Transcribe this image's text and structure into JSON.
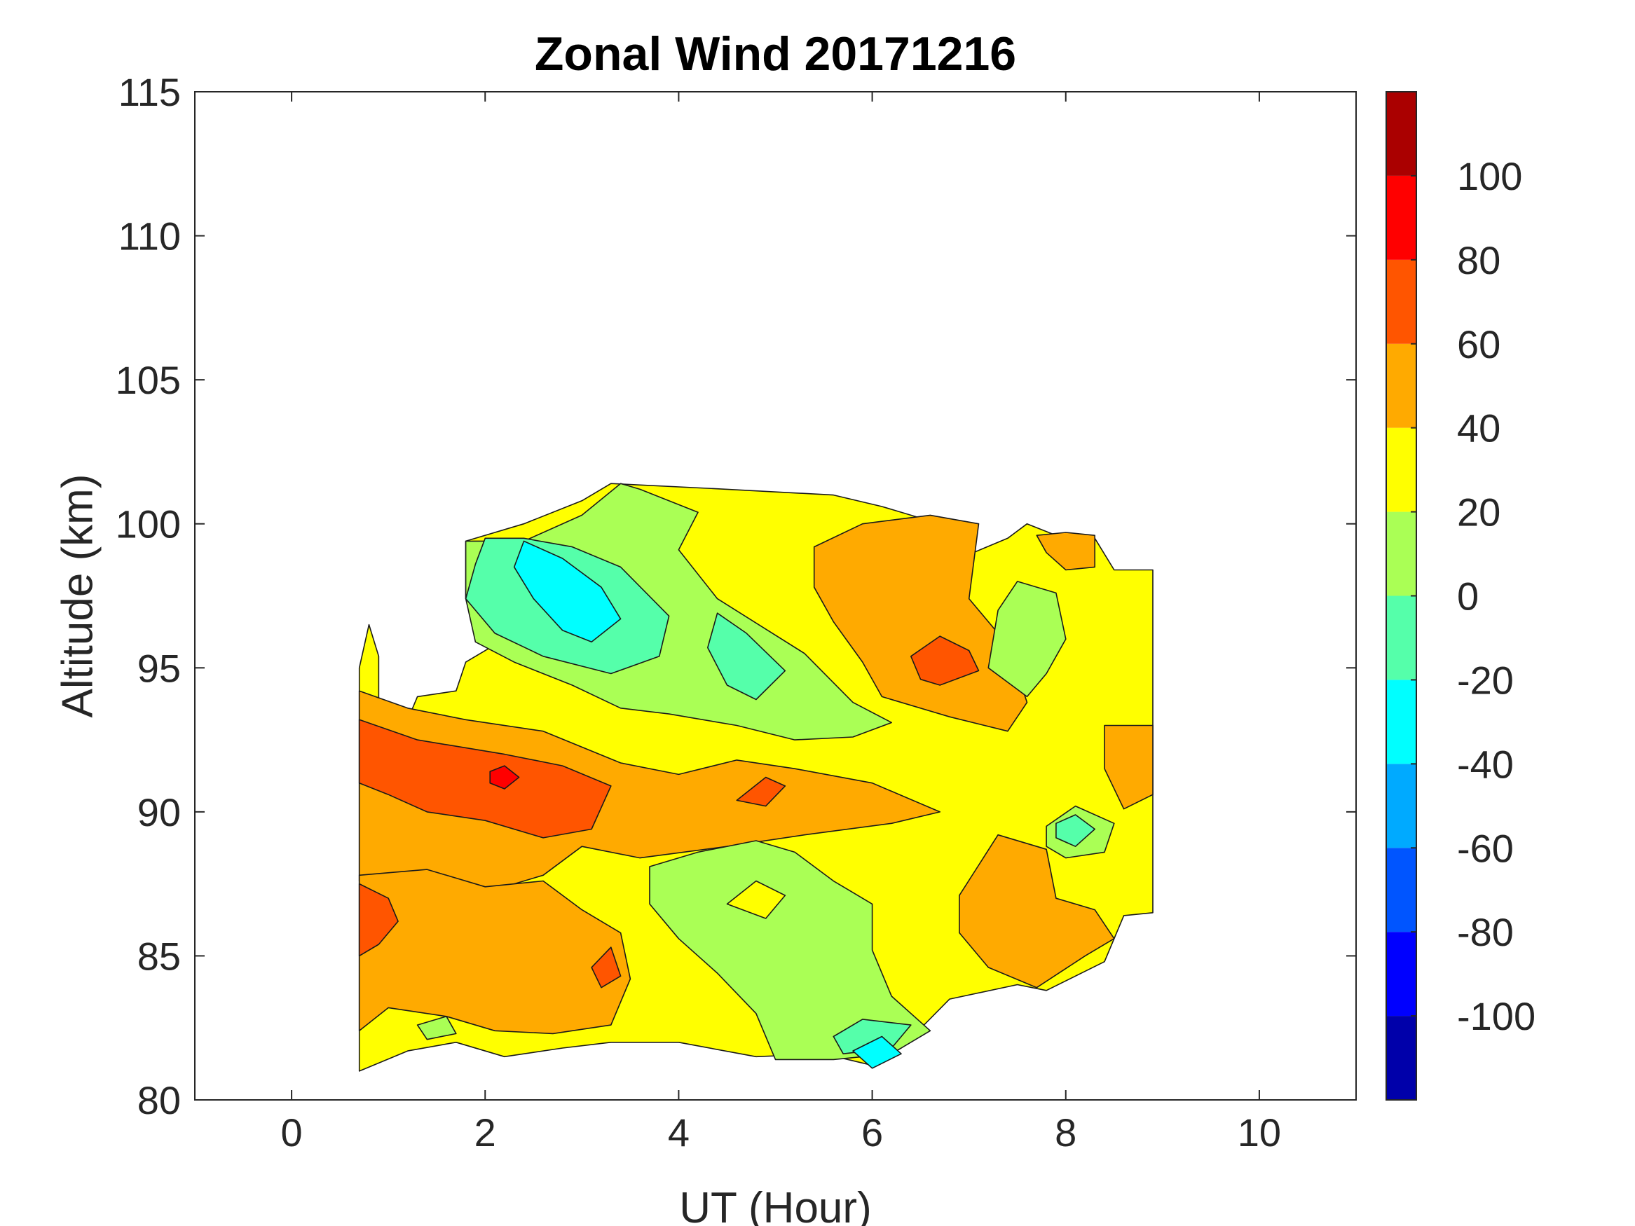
{
  "chart_data": {
    "type": "heatmap",
    "subtype": "filled-contour",
    "title": "Zonal Wind 20171216",
    "xlabel": "UT (Hour)",
    "ylabel": "Altitude (km)",
    "xlim": [
      -1,
      11
    ],
    "ylim": [
      80,
      115
    ],
    "x_ticks": [
      0,
      2,
      4,
      6,
      8,
      10
    ],
    "x_tick_labels": [
      "0",
      "2",
      "4",
      "6",
      "8",
      "10"
    ],
    "y_ticks": [
      80,
      85,
      90,
      95,
      100,
      105,
      110,
      115
    ],
    "y_tick_labels": [
      "80",
      "85",
      "90",
      "95",
      "100",
      "105",
      "110",
      "115"
    ],
    "grid": false,
    "colorbar": {
      "location": "right",
      "range": [
        -120,
        120
      ],
      "ticks": [
        -100,
        -80,
        -60,
        -40,
        -20,
        0,
        20,
        40,
        60,
        80,
        100
      ],
      "tick_labels": [
        "-100",
        "-80",
        "-60",
        "-40",
        "-20",
        "0",
        "20",
        "40",
        "60",
        "80",
        "100"
      ],
      "levels": [
        -120,
        -100,
        -80,
        -60,
        -40,
        -20,
        0,
        20,
        40,
        60,
        80,
        100,
        120
      ],
      "colors": [
        "#0000aa",
        "#0000ff",
        "#0055ff",
        "#00aaff",
        "#00ffff",
        "#55ffaa",
        "#aaff55",
        "#ffff00",
        "#ffaa00",
        "#ff5500",
        "#ff0000",
        "#aa0000"
      ]
    },
    "data_extent": {
      "x": [
        0.7,
        8.9
      ],
      "y": [
        81,
        101.5
      ]
    },
    "regions": [
      {
        "label": "coverage",
        "value": 30,
        "points": [
          [
            0.7,
            81
          ],
          [
            1.2,
            81.7
          ],
          [
            1.7,
            82
          ],
          [
            2.2,
            81.5
          ],
          [
            2.8,
            81.8
          ],
          [
            3.3,
            82
          ],
          [
            4.0,
            82
          ],
          [
            4.8,
            81.5
          ],
          [
            5.5,
            81.6
          ],
          [
            6.0,
            81.2
          ],
          [
            6.3,
            81.8
          ],
          [
            6.8,
            83.5
          ],
          [
            7.5,
            84
          ],
          [
            7.8,
            83.8
          ],
          [
            8.4,
            84.8
          ],
          [
            8.6,
            86.4
          ],
          [
            8.9,
            86.5
          ],
          [
            8.9,
            98.4
          ],
          [
            8.5,
            98.4
          ],
          [
            8.3,
            99.5
          ],
          [
            7.9,
            99.6
          ],
          [
            7.6,
            100
          ],
          [
            7.4,
            99.5
          ],
          [
            6.9,
            98.8
          ],
          [
            6.7,
            99.8
          ],
          [
            6.5,
            100.2
          ],
          [
            6.1,
            100.6
          ],
          [
            5.6,
            101
          ],
          [
            4.5,
            101.2
          ],
          [
            3.3,
            101.4
          ],
          [
            3.0,
            100.8
          ],
          [
            2.4,
            100
          ],
          [
            1.8,
            99.4
          ],
          [
            1.8,
            97.4
          ],
          [
            2.0,
            96.5
          ],
          [
            2.1,
            95.8
          ],
          [
            1.8,
            95.2
          ],
          [
            1.7,
            94.2
          ],
          [
            1.3,
            94
          ],
          [
            1.2,
            93.2
          ],
          [
            0.9,
            93.9
          ],
          [
            0.9,
            95.4
          ],
          [
            0.8,
            96.5
          ],
          [
            0.7,
            95
          ]
        ]
      },
      {
        "label": "band-orange-upper",
        "value": 50,
        "points": [
          [
            0.7,
            94.2
          ],
          [
            1.2,
            93.6
          ],
          [
            1.8,
            93.2
          ],
          [
            2.6,
            92.8
          ],
          [
            3.4,
            91.7
          ],
          [
            4.0,
            91.3
          ],
          [
            4.6,
            91.8
          ],
          [
            5.2,
            91.5
          ],
          [
            6.0,
            91.0
          ],
          [
            6.7,
            90.0
          ],
          [
            6.2,
            89.6
          ],
          [
            5.3,
            89.2
          ],
          [
            4.5,
            88.8
          ],
          [
            3.6,
            88.4
          ],
          [
            3.0,
            88.8
          ],
          [
            2.6,
            87.8
          ],
          [
            2.0,
            87.2
          ],
          [
            1.4,
            87.9
          ],
          [
            0.7,
            87.6
          ]
        ]
      },
      {
        "label": "band-orange-lower",
        "value": 50,
        "points": [
          [
            0.7,
            87.8
          ],
          [
            1.4,
            88.0
          ],
          [
            2.0,
            87.4
          ],
          [
            2.6,
            87.6
          ],
          [
            3.0,
            86.6
          ],
          [
            3.4,
            85.8
          ],
          [
            3.5,
            84.2
          ],
          [
            3.3,
            82.6
          ],
          [
            2.7,
            82.3
          ],
          [
            2.1,
            82.4
          ],
          [
            1.6,
            82.9
          ],
          [
            1.0,
            83.2
          ],
          [
            0.7,
            82.4
          ]
        ]
      },
      {
        "label": "orange-upper-right",
        "value": 50,
        "points": [
          [
            5.4,
            99.2
          ],
          [
            5.9,
            100.0
          ],
          [
            6.6,
            100.3
          ],
          [
            7.1,
            100.0
          ],
          [
            7.0,
            97.4
          ],
          [
            7.4,
            95.8
          ],
          [
            7.6,
            93.8
          ],
          [
            7.4,
            92.8
          ],
          [
            6.8,
            93.3
          ],
          [
            6.1,
            94.0
          ],
          [
            5.9,
            95.2
          ],
          [
            5.6,
            96.6
          ],
          [
            5.4,
            97.8
          ]
        ]
      },
      {
        "label": "orange-lower-right",
        "value": 50,
        "points": [
          [
            6.9,
            87.1
          ],
          [
            7.3,
            89.2
          ],
          [
            7.8,
            88.7
          ],
          [
            7.9,
            87.0
          ],
          [
            8.3,
            86.6
          ],
          [
            8.5,
            85.6
          ],
          [
            8.2,
            85.0
          ],
          [
            7.7,
            83.9
          ],
          [
            7.2,
            84.6
          ],
          [
            6.9,
            85.8
          ]
        ]
      },
      {
        "label": "orange-right-edge",
        "value": 50,
        "points": [
          [
            8.4,
            93.0
          ],
          [
            8.9,
            93.0
          ],
          [
            8.9,
            90.6
          ],
          [
            8.6,
            90.1
          ],
          [
            8.4,
            91.5
          ]
        ]
      },
      {
        "label": "orange-top-right",
        "value": 50,
        "points": [
          [
            7.7,
            99.6
          ],
          [
            8.0,
            99.7
          ],
          [
            8.3,
            99.6
          ],
          [
            8.3,
            98.5
          ],
          [
            8.0,
            98.4
          ],
          [
            7.8,
            99.0
          ]
        ]
      },
      {
        "label": "red-left",
        "value": 70,
        "points": [
          [
            0.7,
            93.2
          ],
          [
            1.3,
            92.5
          ],
          [
            2.2,
            92.0
          ],
          [
            2.8,
            91.6
          ],
          [
            3.3,
            90.9
          ],
          [
            3.1,
            89.4
          ],
          [
            2.6,
            89.1
          ],
          [
            2.0,
            89.7
          ],
          [
            1.4,
            90.0
          ],
          [
            1.0,
            90.6
          ],
          [
            0.7,
            91.0
          ]
        ]
      },
      {
        "label": "red-mid",
        "value": 70,
        "points": [
          [
            4.6,
            90.4
          ],
          [
            4.9,
            91.2
          ],
          [
            5.1,
            90.9
          ],
          [
            4.9,
            90.2
          ]
        ]
      },
      {
        "label": "red-upper-right",
        "value": 70,
        "points": [
          [
            6.4,
            95.4
          ],
          [
            6.7,
            96.1
          ],
          [
            7.0,
            95.6
          ],
          [
            7.1,
            94.9
          ],
          [
            6.7,
            94.4
          ],
          [
            6.5,
            94.6
          ]
        ]
      },
      {
        "label": "red-lower-left",
        "value": 70,
        "points": [
          [
            0.7,
            87.5
          ],
          [
            1.0,
            87.0
          ],
          [
            1.1,
            86.2
          ],
          [
            0.9,
            85.4
          ],
          [
            0.7,
            85.0
          ]
        ]
      },
      {
        "label": "red-lower-mid",
        "value": 70,
        "points": [
          [
            3.1,
            84.6
          ],
          [
            3.3,
            85.3
          ],
          [
            3.4,
            84.3
          ],
          [
            3.2,
            83.9
          ]
        ]
      },
      {
        "label": "darkred-core",
        "value": 90,
        "points": [
          [
            2.05,
            91.4
          ],
          [
            2.2,
            91.6
          ],
          [
            2.35,
            91.2
          ],
          [
            2.2,
            90.8
          ],
          [
            2.05,
            91.0
          ]
        ]
      },
      {
        "label": "green-top",
        "value": 10,
        "points": [
          [
            1.8,
            99.4
          ],
          [
            2.4,
            99.4
          ],
          [
            3.0,
            100.3
          ],
          [
            3.4,
            101.4
          ],
          [
            3.6,
            101.2
          ],
          [
            4.2,
            100.4
          ],
          [
            4.0,
            99.1
          ],
          [
            4.4,
            97.4
          ],
          [
            5.3,
            95.5
          ],
          [
            5.8,
            93.8
          ],
          [
            6.2,
            93.1
          ],
          [
            5.8,
            92.6
          ],
          [
            5.2,
            92.5
          ],
          [
            4.6,
            93.0
          ],
          [
            3.9,
            93.4
          ],
          [
            3.4,
            93.6
          ],
          [
            2.9,
            94.4
          ],
          [
            2.3,
            95.2
          ],
          [
            1.9,
            95.9
          ],
          [
            1.8,
            97.4
          ]
        ]
      },
      {
        "label": "green-bottom",
        "value": 10,
        "points": [
          [
            3.7,
            88.1
          ],
          [
            4.2,
            88.6
          ],
          [
            4.8,
            89.0
          ],
          [
            5.2,
            88.6
          ],
          [
            5.6,
            87.6
          ],
          [
            6.0,
            86.8
          ],
          [
            6.0,
            85.2
          ],
          [
            6.2,
            83.6
          ],
          [
            6.6,
            82.4
          ],
          [
            6.2,
            81.6
          ],
          [
            5.6,
            81.4
          ],
          [
            5.0,
            81.4
          ],
          [
            4.8,
            83.0
          ],
          [
            4.4,
            84.4
          ],
          [
            4.0,
            85.6
          ],
          [
            3.7,
            86.8
          ]
        ]
      },
      {
        "label": "green-right",
        "value": 10,
        "points": [
          [
            7.3,
            97.0
          ],
          [
            7.5,
            98.0
          ],
          [
            7.9,
            97.6
          ],
          [
            8.0,
            96.0
          ],
          [
            7.8,
            94.8
          ],
          [
            7.6,
            94.0
          ],
          [
            7.2,
            95.0
          ]
        ]
      },
      {
        "label": "green-right-mid",
        "value": 10,
        "points": [
          [
            7.8,
            89.5
          ],
          [
            8.1,
            90.2
          ],
          [
            8.5,
            89.6
          ],
          [
            8.4,
            88.6
          ],
          [
            8.0,
            88.4
          ],
          [
            7.8,
            88.8
          ]
        ]
      },
      {
        "label": "green-small-lower-left",
        "value": 10,
        "points": [
          [
            1.3,
            82.6
          ],
          [
            1.6,
            82.9
          ],
          [
            1.7,
            82.3
          ],
          [
            1.4,
            82.1
          ]
        ]
      },
      {
        "label": "teal-top",
        "value": -10,
        "points": [
          [
            1.8,
            97.4
          ],
          [
            1.9,
            98.6
          ],
          [
            2.0,
            99.5
          ],
          [
            2.4,
            99.5
          ],
          [
            2.9,
            99.2
          ],
          [
            3.4,
            98.5
          ],
          [
            3.9,
            96.8
          ],
          [
            3.8,
            95.4
          ],
          [
            3.3,
            94.8
          ],
          [
            2.6,
            95.4
          ],
          [
            2.1,
            96.2
          ]
        ]
      },
      {
        "label": "teal-mid",
        "value": -10,
        "points": [
          [
            4.4,
            96.9
          ],
          [
            4.7,
            96.2
          ],
          [
            5.1,
            94.9
          ],
          [
            4.8,
            93.9
          ],
          [
            4.5,
            94.4
          ],
          [
            4.3,
            95.7
          ]
        ]
      },
      {
        "label": "teal-right",
        "value": -10,
        "points": [
          [
            7.9,
            89.6
          ],
          [
            8.1,
            89.9
          ],
          [
            8.3,
            89.4
          ],
          [
            8.1,
            88.8
          ],
          [
            7.9,
            89.1
          ]
        ]
      },
      {
        "label": "teal-bottom",
        "value": -10,
        "points": [
          [
            5.6,
            82.2
          ],
          [
            5.9,
            82.8
          ],
          [
            6.4,
            82.6
          ],
          [
            6.2,
            81.8
          ],
          [
            5.7,
            81.6
          ]
        ]
      },
      {
        "label": "cyan-top",
        "value": -30,
        "points": [
          [
            2.4,
            99.4
          ],
          [
            2.8,
            98.8
          ],
          [
            3.2,
            97.8
          ],
          [
            3.4,
            96.7
          ],
          [
            3.1,
            95.9
          ],
          [
            2.8,
            96.3
          ],
          [
            2.5,
            97.4
          ],
          [
            2.3,
            98.5
          ]
        ]
      },
      {
        "label": "cyan-bottom",
        "value": -30,
        "points": [
          [
            5.8,
            81.7
          ],
          [
            6.1,
            82.2
          ],
          [
            6.3,
            81.6
          ],
          [
            6.0,
            81.1
          ]
        ]
      },
      {
        "label": "yellow-lower-mid",
        "value": 30,
        "points": [
          [
            4.5,
            86.8
          ],
          [
            4.8,
            87.6
          ],
          [
            5.1,
            87.1
          ],
          [
            4.9,
            86.3
          ]
        ]
      }
    ]
  }
}
